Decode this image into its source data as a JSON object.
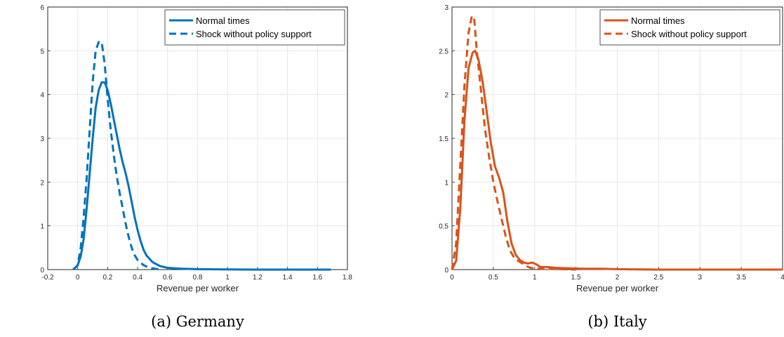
{
  "colors": {
    "germany": "#0072BD",
    "italy": "#D95319",
    "grid": "#e6e6e6",
    "axis": "#262626"
  },
  "chart_data": [
    {
      "type": "line",
      "caption": "(a) Germany",
      "xlabel": "Revenue per worker",
      "ylabel": "",
      "xlim": [
        -0.2,
        1.8
      ],
      "ylim": [
        0,
        6
      ],
      "xticks": [
        -0.2,
        0,
        0.2,
        0.4,
        0.6,
        0.8,
        1,
        1.2,
        1.4,
        1.6,
        1.8
      ],
      "xtick_labels": [
        "-0.2",
        "0",
        "0.2",
        "0.4",
        "0.6",
        "0.8",
        "1",
        "1.2",
        "1.4",
        "1.6",
        "1.8"
      ],
      "yticks": [
        0,
        1,
        2,
        3,
        4,
        5,
        6
      ],
      "ytick_labels": [
        "0",
        "1",
        "2",
        "3",
        "4",
        "5",
        "6"
      ],
      "grid": true,
      "legend_position": "top-right",
      "series": [
        {
          "name": "Normal times",
          "style": "solid",
          "x": [
            -0.03,
            0,
            0.02,
            0.04,
            0.06,
            0.08,
            0.1,
            0.12,
            0.14,
            0.16,
            0.18,
            0.2,
            0.22,
            0.24,
            0.26,
            0.28,
            0.3,
            0.32,
            0.34,
            0.36,
            0.38,
            0.4,
            0.42,
            0.44,
            0.46,
            0.5,
            0.55,
            0.6,
            0.7,
            0.8,
            1.0,
            1.2,
            1.4,
            1.6,
            1.69
          ],
          "y": [
            0,
            0.1,
            0.3,
            0.7,
            1.4,
            2.2,
            3.0,
            3.7,
            4.1,
            4.28,
            4.28,
            4.1,
            3.8,
            3.45,
            3.1,
            2.75,
            2.45,
            2.2,
            1.9,
            1.55,
            1.2,
            0.9,
            0.65,
            0.45,
            0.32,
            0.17,
            0.08,
            0.04,
            0.02,
            0.01,
            0.005,
            0,
            0,
            0,
            0
          ]
        },
        {
          "name": "Shock without policy support",
          "style": "dashed",
          "x": [
            -0.03,
            0,
            0.02,
            0.04,
            0.06,
            0.08,
            0.1,
            0.12,
            0.14,
            0.16,
            0.18,
            0.2,
            0.22,
            0.24,
            0.26,
            0.28,
            0.3,
            0.32,
            0.34,
            0.36,
            0.38,
            0.4,
            0.44,
            0.48,
            0.52,
            0.55
          ],
          "y": [
            0,
            0.1,
            0.5,
            1.2,
            2.1,
            3.2,
            4.3,
            5.0,
            5.2,
            5.2,
            4.7,
            3.9,
            3.2,
            2.65,
            2.15,
            1.75,
            1.4,
            1.05,
            0.75,
            0.5,
            0.33,
            0.22,
            0.1,
            0.04,
            0.02,
            0
          ]
        }
      ]
    },
    {
      "type": "line",
      "caption": "(b) Italy",
      "xlabel": "Revenue per worker",
      "ylabel": "",
      "xlim": [
        0,
        4
      ],
      "ylim": [
        0,
        3
      ],
      "xticks": [
        0,
        0.5,
        1,
        1.5,
        2,
        2.5,
        3,
        3.5,
        4
      ],
      "xtick_labels": [
        "0",
        "0.5",
        "1",
        "1.5",
        "2",
        "2.5",
        "3",
        "3.5",
        "4"
      ],
      "yticks": [
        0,
        0.5,
        1,
        1.5,
        2,
        2.5,
        3
      ],
      "ytick_labels": [
        "0",
        "0.5",
        "1",
        "1.5",
        "2",
        "2.5",
        "3"
      ],
      "grid": true,
      "legend_position": "top-right",
      "series": [
        {
          "name": "Normal times",
          "style": "solid",
          "x": [
            0,
            0.05,
            0.1,
            0.15,
            0.2,
            0.25,
            0.28,
            0.32,
            0.37,
            0.42,
            0.47,
            0.52,
            0.57,
            0.62,
            0.67,
            0.72,
            0.77,
            0.82,
            0.87,
            0.92,
            0.97,
            1.02,
            1.07,
            1.15,
            1.25,
            1.4,
            1.6,
            1.8,
            2.0,
            2.5,
            3.0,
            3.5,
            4.0
          ],
          "y": [
            0,
            0.1,
            0.7,
            1.7,
            2.3,
            2.48,
            2.5,
            2.4,
            2.15,
            1.8,
            1.45,
            1.18,
            1.05,
            0.88,
            0.55,
            0.3,
            0.17,
            0.11,
            0.08,
            0.07,
            0.08,
            0.06,
            0.03,
            0.03,
            0.02,
            0.015,
            0.01,
            0.01,
            0.005,
            0,
            0,
            0,
            0
          ]
        },
        {
          "name": "Shock without policy support",
          "style": "dashed",
          "x": [
            0,
            0.05,
            0.1,
            0.15,
            0.2,
            0.24,
            0.27,
            0.3,
            0.35,
            0.4,
            0.45,
            0.5,
            0.55,
            0.6,
            0.65,
            0.7,
            0.75,
            0.8,
            0.85,
            0.9,
            0.95,
            1.0,
            1.1,
            1.3,
            1.5
          ],
          "y": [
            0,
            0.3,
            1.2,
            2.1,
            2.7,
            2.9,
            2.85,
            2.5,
            2.05,
            1.6,
            1.28,
            1.0,
            0.78,
            0.58,
            0.38,
            0.22,
            0.14,
            0.1,
            0.07,
            0.04,
            0.02,
            0.015,
            0.01,
            0.005,
            0
          ]
        }
      ]
    }
  ]
}
